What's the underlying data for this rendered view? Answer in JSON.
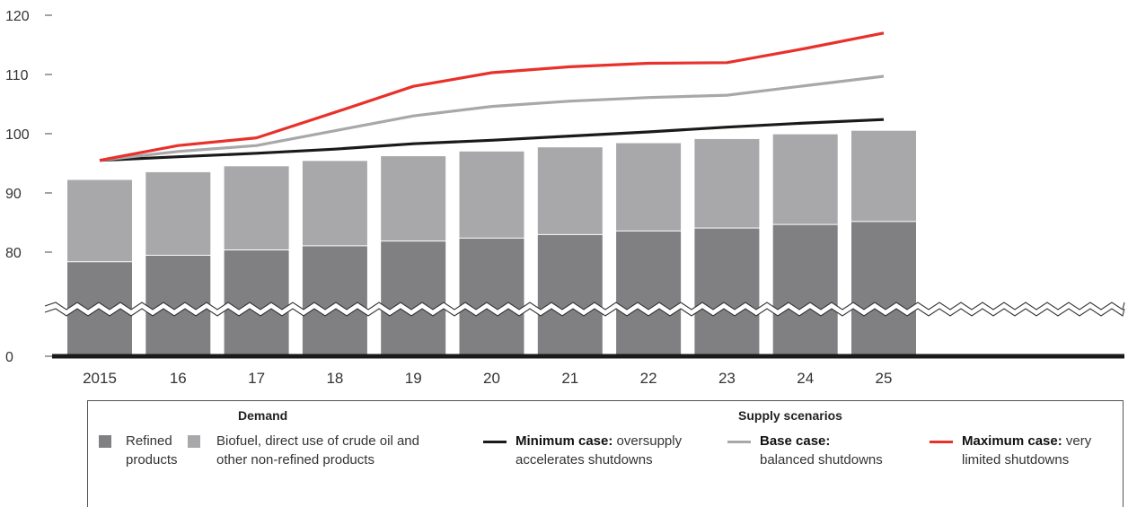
{
  "chart_data": {
    "type": "bar",
    "categories": [
      "2015",
      "16",
      "17",
      "18",
      "19",
      "20",
      "21",
      "22",
      "23",
      "24",
      "25"
    ],
    "y_ticks": [
      "120",
      "110",
      "100",
      "90",
      "80",
      "0"
    ],
    "axis_break": true,
    "stacked": true,
    "series": [
      {
        "name": "Refined products",
        "type": "bar",
        "color": "#808083",
        "values": [
          78.3,
          79.4,
          80.3,
          81.0,
          81.8,
          82.3,
          82.9,
          83.5,
          84.0,
          84.6,
          85.1
        ]
      },
      {
        "name": "Biofuel, direct use of crude oil and other non-refined products",
        "type": "bar",
        "color": "#a8a8ab",
        "values": [
          13.9,
          14.1,
          14.2,
          14.4,
          14.4,
          14.7,
          14.8,
          14.9,
          15.1,
          15.3,
          15.4
        ]
      },
      {
        "name": "Minimum case: oversupply accelerates shutdowns",
        "type": "line",
        "color": "#1a1a1a",
        "values": [
          95.5,
          96.1,
          96.7,
          97.4,
          98.3,
          98.9,
          99.6,
          100.3,
          101.1,
          101.8,
          102.4
        ]
      },
      {
        "name": "Base case: balanced shutdowns",
        "type": "line",
        "color": "#a8a8ab",
        "values": [
          95.5,
          97.0,
          98.0,
          100.5,
          103.0,
          104.6,
          105.5,
          106.1,
          106.5,
          108.1,
          109.7
        ]
      },
      {
        "name": "Maximum case: very limited shutdowns",
        "type": "line",
        "color": "#e8312a",
        "values": [
          95.5,
          98.0,
          99.3,
          103.6,
          108.0,
          110.3,
          111.3,
          111.9,
          112.0,
          114.4,
          117.0
        ]
      }
    ]
  },
  "legend": {
    "demand_title": "Demand",
    "supply_title": "Supply scenarios",
    "refined_label": "Refined products",
    "biofuel_label": "Biofuel, direct use of crude oil and other non-refined products",
    "min_bold": "Minimum case:",
    "min_rest": "oversupply accelerates shutdowns",
    "base_bold": "Base case:",
    "base_rest": "balanced shutdowns",
    "max_bold": "Maximum case:",
    "max_rest": "very limited shutdowns"
  }
}
